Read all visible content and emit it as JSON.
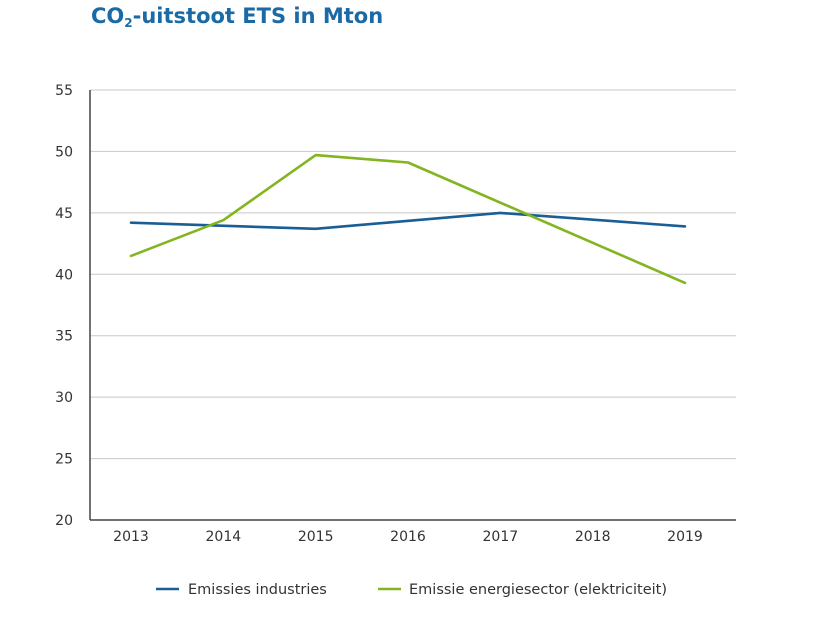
{
  "title": {
    "main": "CO",
    "sub": "2",
    "rest": "-uitstoot ETS in Mton"
  },
  "colors": {
    "title": "#1a6aa6",
    "grid": "#c8c8c8",
    "axis": "#444444"
  },
  "chart_data": {
    "type": "line",
    "title": "CO2-uitstoot ETS in Mton",
    "xlabel": "",
    "ylabel": "",
    "x": [
      "2013",
      "2014",
      "2015",
      "2016",
      "2017",
      "2018",
      "2019"
    ],
    "ylim": [
      20,
      55
    ],
    "yticks": [
      20,
      25,
      30,
      35,
      40,
      45,
      50,
      55
    ],
    "grid": true,
    "legend_position": "bottom",
    "series": [
      {
        "name": "Emissies industries",
        "color": "#1a5e96",
        "values": [
          44.2,
          null,
          43.7,
          null,
          45.0,
          null,
          43.9
        ]
      },
      {
        "name": "Emissie energiesector (elektriciteit)",
        "color": "#82b520",
        "values": [
          41.5,
          44.4,
          49.7,
          49.1,
          null,
          null,
          39.3
        ]
      }
    ]
  }
}
